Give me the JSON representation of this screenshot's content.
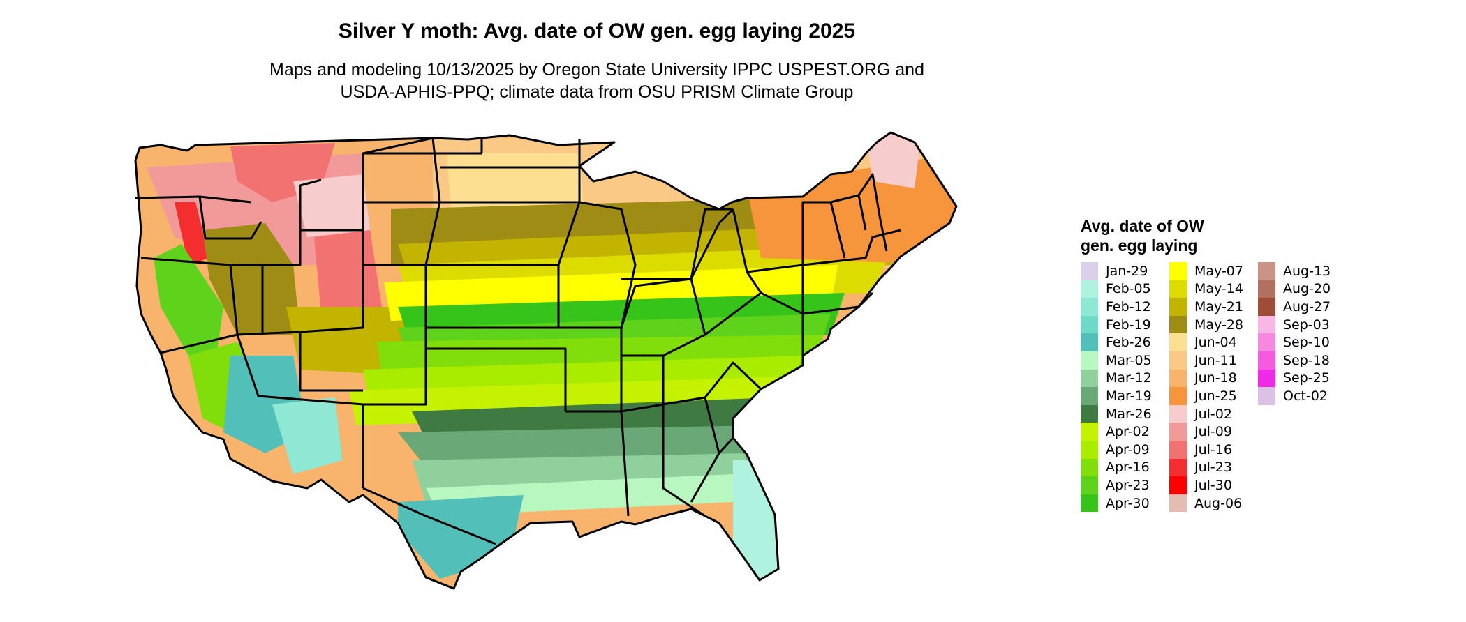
{
  "title": "Silver Y moth: Avg. date of OW gen. egg laying 2025",
  "subtitle": {
    "line1": "Maps and modeling 10/13/2025 by Oregon State University IPPC USPEST.ORG and",
    "line2": "USDA-APHIS-PPQ; climate data from OSU PRISM Climate Group"
  },
  "legend": {
    "title_line1": "Avg. date of OW",
    "title_line2": "gen. egg laying",
    "items": [
      {
        "label": "Jan-29",
        "color": "#dad0ea"
      },
      {
        "label": "Feb-05",
        "color": "#aff2e0"
      },
      {
        "label": "Feb-12",
        "color": "#8ee8d3"
      },
      {
        "label": "Feb-19",
        "color": "#6fd9c7"
      },
      {
        "label": "Feb-26",
        "color": "#52c0b8"
      },
      {
        "label": "Mar-05",
        "color": "#b9f7c0"
      },
      {
        "label": "Mar-12",
        "color": "#8fd09d"
      },
      {
        "label": "Mar-19",
        "color": "#6aa878"
      },
      {
        "label": "Mar-26",
        "color": "#3f7a43"
      },
      {
        "label": "Apr-02",
        "color": "#c4f200"
      },
      {
        "label": "Apr-09",
        "color": "#a9ec00"
      },
      {
        "label": "Apr-16",
        "color": "#82de0a"
      },
      {
        "label": "Apr-23",
        "color": "#5fd21c"
      },
      {
        "label": "Apr-30",
        "color": "#36c41a"
      },
      {
        "label": "May-07",
        "color": "#ffff00"
      },
      {
        "label": "May-14",
        "color": "#dcdc00"
      },
      {
        "label": "May-21",
        "color": "#c2b400"
      },
      {
        "label": "May-28",
        "color": "#9e8c14"
      },
      {
        "label": "Jun-04",
        "color": "#fcdf90"
      },
      {
        "label": "Jun-11",
        "color": "#fbc986"
      },
      {
        "label": "Jun-18",
        "color": "#f8b46c"
      },
      {
        "label": "Jun-25",
        "color": "#f6953c"
      },
      {
        "label": "Jul-02",
        "color": "#f7cccc"
      },
      {
        "label": "Jul-09",
        "color": "#f29a9a"
      },
      {
        "label": "Jul-16",
        "color": "#f27272"
      },
      {
        "label": "Jul-23",
        "color": "#f42e2e"
      },
      {
        "label": "Jul-30",
        "color": "#ff0000"
      },
      {
        "label": "Aug-06",
        "color": "#e5bcb2"
      },
      {
        "label": "Aug-13",
        "color": "#c99486"
      },
      {
        "label": "Aug-20",
        "color": "#b27060"
      },
      {
        "label": "Aug-27",
        "color": "#a04d38"
      },
      {
        "label": "Sep-03",
        "color": "#f9b7e5"
      },
      {
        "label": "Sep-10",
        "color": "#f788e0"
      },
      {
        "label": "Sep-18",
        "color": "#f55ae0"
      },
      {
        "label": "Sep-25",
        "color": "#ee2ae6"
      },
      {
        "label": "Oct-02",
        "color": "#dcc1e6"
      }
    ]
  }
}
